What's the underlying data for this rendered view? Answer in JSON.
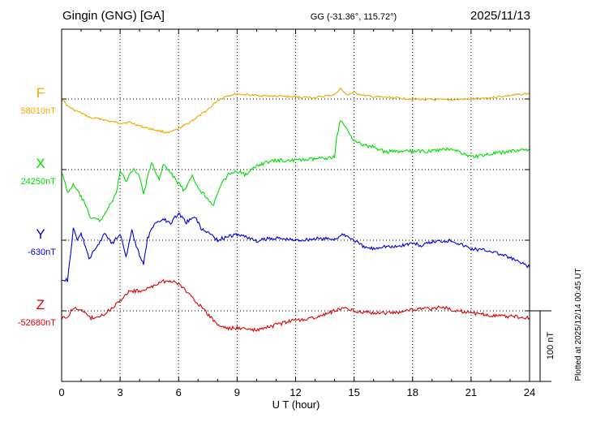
{
  "header": {
    "station": "Gingin (GNG)  [GA]",
    "coords": "GG (-31.36°, 115.72°)",
    "date": "2025/11/13"
  },
  "footer": {
    "plotted": "Plotted at 2025/12/14 00:45 UT",
    "scale_label": "100 nT"
  },
  "chart_data": {
    "type": "line",
    "xlabel": "U T (hour)",
    "xlim": [
      0,
      24
    ],
    "xticks": [
      0,
      3,
      6,
      9,
      12,
      15,
      18,
      21,
      24
    ],
    "grid": true,
    "scale_bar_nT": 100,
    "series": [
      {
        "name": "F",
        "baseline_label": "58010nT",
        "baseline": 58010,
        "color": "#f0a800",
        "points": [
          [
            0,
            58011
          ],
          [
            0.3,
            58000
          ],
          [
            0.6,
            57995
          ],
          [
            1,
            57990
          ],
          [
            1.5,
            57983
          ],
          [
            2,
            57982
          ],
          [
            2.5,
            57978
          ],
          [
            3,
            57976
          ],
          [
            3.5,
            57977
          ],
          [
            4,
            57972
          ],
          [
            4.5,
            57968
          ],
          [
            5,
            57965
          ],
          [
            5.5,
            57962
          ],
          [
            6,
            57968
          ],
          [
            6.5,
            57976
          ],
          [
            7,
            57985
          ],
          [
            7.5,
            57995
          ],
          [
            8,
            58008
          ],
          [
            8.5,
            58015
          ],
          [
            9,
            58017
          ],
          [
            9.5,
            58016
          ],
          [
            10,
            58015
          ],
          [
            11,
            58014
          ],
          [
            12,
            58013
          ],
          [
            13,
            58012
          ],
          [
            14,
            58016
          ],
          [
            14.3,
            58025
          ],
          [
            14.6,
            58016
          ],
          [
            15,
            58019
          ],
          [
            15.5,
            58015
          ],
          [
            16,
            58013
          ],
          [
            17,
            58012
          ],
          [
            18,
            58010
          ],
          [
            19,
            58009
          ],
          [
            20,
            58009
          ],
          [
            21,
            58010
          ],
          [
            22,
            58012
          ],
          [
            23,
            58015
          ],
          [
            24,
            58018
          ]
        ]
      },
      {
        "name": "X",
        "baseline_label": "24250nT",
        "baseline": 24250,
        "color": "#00dd00",
        "points": [
          [
            0,
            24248
          ],
          [
            0.3,
            24218
          ],
          [
            0.6,
            24228
          ],
          [
            1,
            24212
          ],
          [
            1.5,
            24182
          ],
          [
            2,
            24178
          ],
          [
            2.3,
            24192
          ],
          [
            2.8,
            24215
          ],
          [
            3,
            24248
          ],
          [
            3.3,
            24233
          ],
          [
            3.7,
            24253
          ],
          [
            4,
            24240
          ],
          [
            4.2,
            24215
          ],
          [
            4.6,
            24260
          ],
          [
            5,
            24235
          ],
          [
            5.2,
            24258
          ],
          [
            5.6,
            24245
          ],
          [
            6,
            24230
          ],
          [
            6.3,
            24220
          ],
          [
            6.7,
            24240
          ],
          [
            7,
            24225
          ],
          [
            7.3,
            24215
          ],
          [
            7.8,
            24200
          ],
          [
            8.2,
            24230
          ],
          [
            8.6,
            24245
          ],
          [
            9,
            24248
          ],
          [
            9.5,
            24242
          ],
          [
            10,
            24256
          ],
          [
            10.5,
            24260
          ],
          [
            11,
            24263
          ],
          [
            12,
            24263
          ],
          [
            13,
            24265
          ],
          [
            14,
            24268
          ],
          [
            14.1,
            24295
          ],
          [
            14.3,
            24320
          ],
          [
            14.5,
            24312
          ],
          [
            14.8,
            24300
          ],
          [
            15,
            24292
          ],
          [
            15.5,
            24284
          ],
          [
            16,
            24282
          ],
          [
            16.5,
            24276
          ],
          [
            17,
            24275
          ],
          [
            18,
            24276
          ],
          [
            19,
            24276
          ],
          [
            20,
            24280
          ],
          [
            21,
            24268
          ],
          [
            22,
            24272
          ],
          [
            23,
            24276
          ],
          [
            24,
            24279
          ]
        ]
      },
      {
        "name": "Y",
        "baseline_label": "-630nT",
        "baseline": -630,
        "color": "#0000dd",
        "points": [
          [
            0,
            -685
          ],
          [
            0.3,
            -687
          ],
          [
            0.6,
            -615
          ],
          [
            0.8,
            -628
          ],
          [
            1,
            -620
          ],
          [
            1.4,
            -656
          ],
          [
            1.8,
            -640
          ],
          [
            2.2,
            -620
          ],
          [
            2.6,
            -634
          ],
          [
            3,
            -620
          ],
          [
            3.3,
            -654
          ],
          [
            3.6,
            -617
          ],
          [
            4,
            -652
          ],
          [
            4.2,
            -665
          ],
          [
            4.4,
            -628
          ],
          [
            4.8,
            -605
          ],
          [
            5.2,
            -600
          ],
          [
            5.6,
            -605
          ],
          [
            6,
            -592
          ],
          [
            6.4,
            -605
          ],
          [
            6.8,
            -595
          ],
          [
            7.2,
            -615
          ],
          [
            7.6,
            -620
          ],
          [
            8,
            -630
          ],
          [
            8.5,
            -625
          ],
          [
            9,
            -622
          ],
          [
            9.5,
            -625
          ],
          [
            10,
            -632
          ],
          [
            10.5,
            -628
          ],
          [
            11,
            -627
          ],
          [
            12,
            -630
          ],
          [
            13,
            -628
          ],
          [
            14,
            -628
          ],
          [
            14.5,
            -622
          ],
          [
            15,
            -630
          ],
          [
            15.5,
            -640
          ],
          [
            16,
            -642
          ],
          [
            16.5,
            -638
          ],
          [
            17,
            -640
          ],
          [
            17.5,
            -637
          ],
          [
            18,
            -634
          ],
          [
            18.5,
            -638
          ],
          [
            19,
            -632
          ],
          [
            20,
            -630
          ],
          [
            20.5,
            -636
          ],
          [
            21,
            -642
          ],
          [
            22,
            -645
          ],
          [
            23,
            -655
          ],
          [
            24,
            -668
          ]
        ]
      },
      {
        "name": "Z",
        "baseline_label": "-52680nT",
        "baseline": -52680,
        "color": "#dd0000",
        "points": [
          [
            0,
            -52690
          ],
          [
            0.3,
            -52690
          ],
          [
            0.6,
            -52675
          ],
          [
            1,
            -52680
          ],
          [
            1.5,
            -52690
          ],
          [
            2,
            -52688
          ],
          [
            2.5,
            -52678
          ],
          [
            3,
            -52665
          ],
          [
            3.5,
            -52652
          ],
          [
            4,
            -52652
          ],
          [
            4.5,
            -52648
          ],
          [
            5,
            -52640
          ],
          [
            5.5,
            -52637
          ],
          [
            6,
            -52642
          ],
          [
            6.5,
            -52655
          ],
          [
            7,
            -52670
          ],
          [
            7.5,
            -52685
          ],
          [
            8,
            -52700
          ],
          [
            8.5,
            -52705
          ],
          [
            9,
            -52704
          ],
          [
            9.5,
            -52706
          ],
          [
            10,
            -52708
          ],
          [
            11,
            -52700
          ],
          [
            12,
            -52693
          ],
          [
            13,
            -52690
          ],
          [
            14,
            -52680
          ],
          [
            14.5,
            -52675
          ],
          [
            15,
            -52680
          ],
          [
            16,
            -52683
          ],
          [
            17,
            -52683
          ],
          [
            18,
            -52678
          ],
          [
            19,
            -52677
          ],
          [
            19.5,
            -52675
          ],
          [
            20,
            -52678
          ],
          [
            21,
            -52683
          ],
          [
            22,
            -52686
          ],
          [
            23,
            -52688
          ],
          [
            24,
            -52690
          ]
        ]
      }
    ]
  }
}
